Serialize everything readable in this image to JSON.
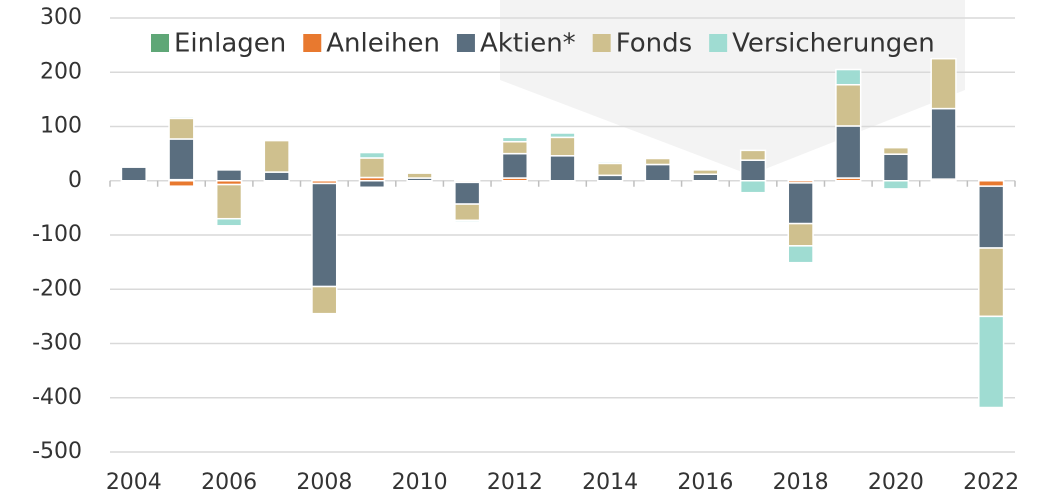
{
  "chart_data": {
    "type": "bar",
    "stacked": true,
    "categories": [
      "2004",
      null,
      "2006",
      null,
      "2008",
      null,
      "2010",
      null,
      "2012",
      null,
      "2014",
      null,
      "2016",
      null,
      "2018",
      null,
      "2020",
      null,
      "2022"
    ],
    "series": [
      {
        "name": "Einlagen",
        "color": "#5fa777",
        "values": [
          0,
          2,
          0,
          0,
          0,
          0,
          0,
          0,
          0,
          0,
          0,
          0,
          0,
          0,
          0,
          0,
          0,
          0,
          0
        ]
      },
      {
        "name": "Anleihen",
        "color": "#e8792f",
        "values": [
          -2,
          -10,
          -7,
          0,
          -5,
          6,
          0,
          -3,
          5,
          0,
          0,
          0,
          0,
          0,
          -4,
          5,
          0,
          3,
          -10
        ]
      },
      {
        "name": "Aktien*",
        "color": "#5a6e7f",
        "values": [
          25,
          75,
          20,
          16,
          -190,
          -12,
          5,
          -40,
          45,
          46,
          10,
          30,
          12,
          38,
          -75,
          96,
          49,
          130,
          -114
        ]
      },
      {
        "name": "Fonds",
        "color": "#cfc08e",
        "values": [
          0,
          38,
          -63,
          58,
          -50,
          36,
          9,
          -30,
          22,
          34,
          22,
          11,
          8,
          18,
          -41,
          76,
          12,
          92,
          -126
        ]
      },
      {
        "name": "Versicherungen",
        "color": "#9fdcd2",
        "values": [
          0,
          3,
          -13,
          0,
          0,
          10,
          0,
          -3,
          8,
          8,
          3,
          0,
          0,
          -22,
          -31,
          28,
          -15,
          0,
          -168
        ]
      }
    ],
    "ylim": [
      -500,
      300
    ],
    "yticks": [
      -500,
      -400,
      -300,
      -200,
      -100,
      0,
      100,
      200,
      300
    ],
    "grid": true,
    "legend": "top"
  }
}
